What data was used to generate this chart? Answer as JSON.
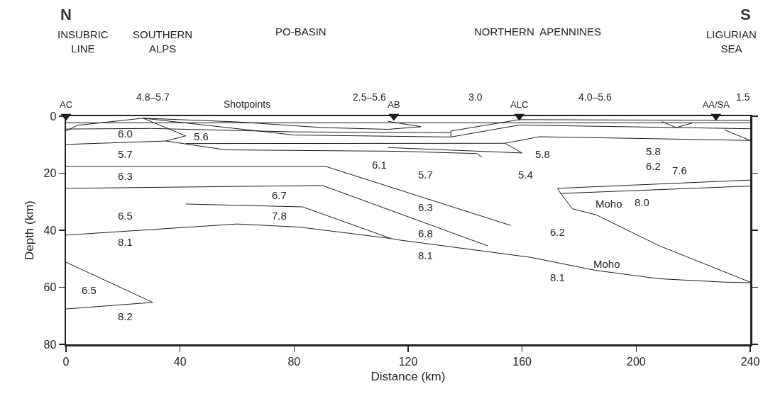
{
  "chart_data": {
    "type": "line",
    "xlabel": "Distance (km)",
    "ylabel": "Depth (km)",
    "xlim": [
      0,
      240
    ],
    "xticks": [
      0,
      40,
      80,
      120,
      160,
      200,
      240
    ],
    "ylim": [
      80,
      0
    ],
    "yticks": [
      0,
      20,
      40,
      60,
      80
    ],
    "grid": false,
    "marker": "none",
    "line_style": "solid",
    "series": [
      {
        "color": "#1a1a1a",
        "x": [
          0,
          91,
          156
        ],
        "values": [
          17.6,
          17.6,
          38.3
        ]
      },
      {
        "color": "#1a1a1a",
        "x": [
          0,
          90,
          148
        ],
        "values": [
          25.3,
          24.3,
          45.5
        ]
      },
      {
        "color": "#1a1a1a",
        "x": [
          42,
          83,
          114
        ],
        "values": [
          30.8,
          31.8,
          42.9
        ]
      },
      {
        "color": "#1a1a1a",
        "x": [
          0,
          60,
          82,
          114,
          116,
          163,
          186,
          208,
          231,
          240
        ],
        "values": [
          41.7,
          37.8,
          38.9,
          42.9,
          43.3,
          49.5,
          54.1,
          57,
          58.2,
          58.4
        ]
      },
      {
        "color": "#1a1a1a",
        "x": [
          240,
          172.4,
          173.5,
          177.7,
          186,
          208,
          240
        ],
        "values": [
          22.4,
          25.3,
          27.1,
          32.5,
          34.6,
          45.4,
          58.2
        ]
      },
      {
        "color": "#1a1a1a",
        "x": [
          173.5,
          240
        ],
        "values": [
          27.1,
          24.5
        ]
      },
      {
        "color": "#1a1a1a",
        "x": [
          0,
          30.4,
          0
        ],
        "values": [
          51.2,
          65.3,
          67.6
        ]
      },
      {
        "color": "#1a1a1a",
        "x": [
          0,
          240
        ],
        "values": [
          2.3,
          2.3
        ]
      },
      {
        "color": "#1a1a1a",
        "x": [
          0,
          30,
          80,
          135
        ],
        "values": [
          4.5,
          4.3,
          5.5,
          5.8
        ]
      },
      {
        "color": "#1a1a1a",
        "x": [
          0,
          4,
          27,
          60,
          90,
          113,
          124.5,
          113
        ],
        "values": [
          5.2,
          3.2,
          0.7,
          2,
          4,
          4.6,
          3.7,
          1.8
        ]
      },
      {
        "color": "#1a1a1a",
        "x": [
          35,
          42,
          27,
          80,
          135,
          135,
          159,
          240
        ],
        "values": [
          8.7,
          6.9,
          0.7,
          6.6,
          7.3,
          5.2,
          1.2,
          1.5
        ]
      },
      {
        "color": "#1a1a1a",
        "x": [
          0,
          35,
          56,
          116,
          144,
          146
        ],
        "values": [
          9.9,
          8.7,
          11.8,
          12.3,
          13.1,
          14.3
        ]
      },
      {
        "color": "#1a1a1a",
        "x": [
          42,
          154,
          160,
          113
        ],
        "values": [
          9.6,
          9.5,
          12.9,
          11
        ]
      },
      {
        "color": "#1a1a1a",
        "x": [
          154,
          166,
          240
        ],
        "values": [
          9.5,
          7.2,
          8.5
        ]
      },
      {
        "color": "#1a1a1a",
        "x": [
          135,
          159,
          240
        ],
        "values": [
          7.3,
          3.1,
          4.4
        ]
      },
      {
        "color": "#1a1a1a",
        "x": [
          231,
          240
        ],
        "values": [
          4.8,
          8.5
        ]
      },
      {
        "color": "#1a1a1a",
        "x": [
          209,
          214,
          220
        ],
        "values": [
          1.9,
          4,
          2.3
        ]
      },
      {
        "type": "scatter",
        "marker": "triangle",
        "color": "#1a1a1a",
        "x": [
          0,
          115,
          159,
          228
        ],
        "values": [
          0,
          0,
          0,
          0
        ],
        "value_labels": [
          "AC",
          "AB",
          "ALC",
          "AA/SA"
        ]
      }
    ],
    "annotations": [
      "N",
      "S",
      "INSUBRIC\nLINE",
      "SOUTHERN\nALPS",
      "PO-BASIN",
      "NORTHERN  APENNINES",
      "LIGURIAN\nSEA",
      "4.8–5.7",
      "Shotpoints",
      "2.5–5.6",
      "3.0",
      "4.0–5.6",
      "1.5",
      "6.0",
      "5.6",
      "5.7",
      "6.3",
      "6.7",
      "6.5",
      "7.8",
      "8.1",
      "6.5",
      "8.2",
      "6.1",
      "5.7",
      "6.3",
      "6.8",
      "8.1",
      "5.8",
      "5.4",
      "6.2",
      "8.1",
      "Moho",
      "5.8",
      "6.2",
      "7.6",
      "Moho",
      "8.0"
    ]
  }
}
